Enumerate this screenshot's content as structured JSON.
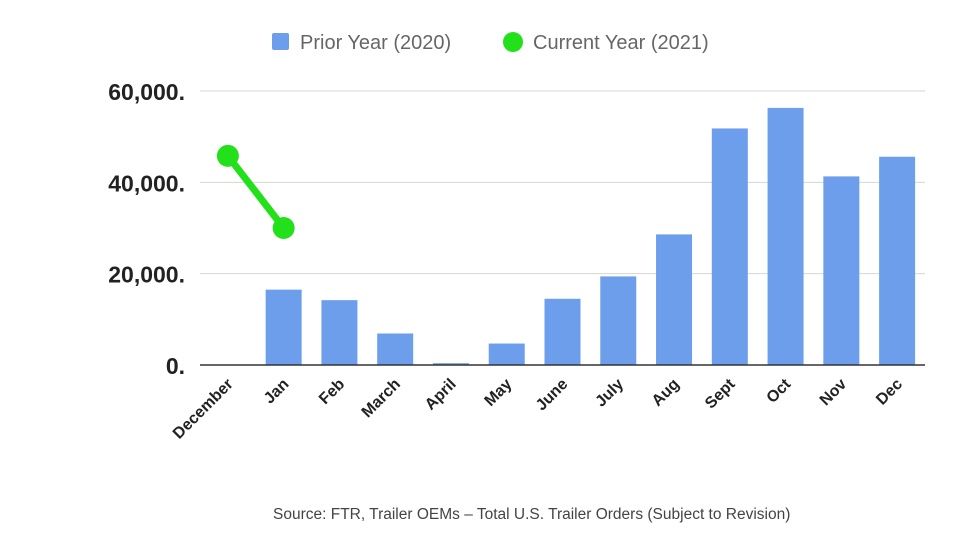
{
  "chart_data": {
    "type": "bar",
    "categories": [
      "December",
      "Jan",
      "Feb",
      "March",
      "April",
      "May",
      "June",
      "July",
      "Aug",
      "Sept",
      "Oct",
      "Nov",
      "Dec"
    ],
    "series": [
      {
        "name": "Prior Year (2020)",
        "type": "bar",
        "color": "#6d9eeb",
        "values": [
          null,
          16500,
          14200,
          6900,
          400,
          4700,
          14500,
          19400,
          28600,
          51800,
          56300,
          41300,
          45600
        ]
      },
      {
        "name": "Current Year (2021)",
        "type": "line",
        "color": "#22e01a",
        "values": [
          45800,
          30000,
          null,
          null,
          null,
          null,
          null,
          null,
          null,
          null,
          null,
          null,
          null
        ]
      }
    ],
    "ylim": [
      0,
      60000
    ],
    "yticks": [
      0,
      20000,
      40000,
      60000
    ],
    "ytick_labels": [
      "0.",
      "20,000.",
      "40,000.",
      "60,000."
    ],
    "grid": true,
    "legend_position": "top-center",
    "xlabel": "",
    "ylabel": "",
    "footnote": "Source: FTR, Trailer OEMs – Total U.S. Trailer Orders (Subject to Revision)"
  }
}
